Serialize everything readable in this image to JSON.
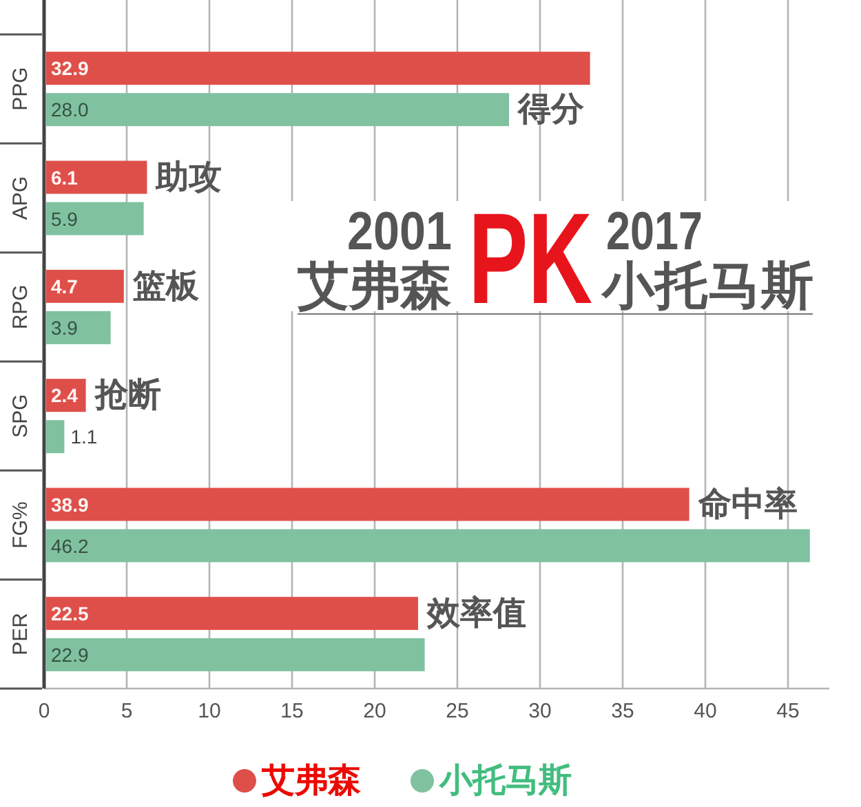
{
  "chart_data": {
    "type": "bar",
    "orientation": "horizontal",
    "title": "2001艾弗森PK2017小托马斯",
    "categories": [
      "PPG",
      "APG",
      "RPG",
      "SPG",
      "FG%",
      "PER"
    ],
    "series": [
      {
        "name": "艾弗森",
        "color": "#df4f4a",
        "values": [
          32.9,
          6.1,
          4.7,
          2.4,
          38.9,
          22.5
        ],
        "value_labels": [
          "32.9",
          "6.1",
          "4.7",
          "2.4",
          "38.9",
          "22.5"
        ]
      },
      {
        "name": "小托马斯",
        "color": "#80c1a0",
        "values": [
          28.0,
          5.9,
          3.9,
          1.1,
          46.2,
          22.9
        ],
        "value_labels": [
          "28.0",
          "5.9",
          "3.9",
          "1.1",
          "46.2",
          "22.9"
        ]
      }
    ],
    "xlim": [
      0,
      47.5
    ],
    "xticks": [
      0,
      5,
      10,
      15,
      20,
      25,
      30,
      35,
      40,
      45
    ],
    "grid": "x",
    "legend": "bottom",
    "annotations": [
      {
        "text": "得分",
        "x": 28.0,
        "y": "PPG"
      },
      {
        "text": "助攻",
        "x": 6.1,
        "y": "APG"
      },
      {
        "text": "篮板",
        "x": 4.7,
        "y": "RPG"
      },
      {
        "text": "抢断",
        "x": 2.4,
        "y": "SPG"
      },
      {
        "text": "命中率",
        "x": 38.9,
        "y": "FG%"
      },
      {
        "text": "效率值",
        "x": 22.5,
        "y": "PER"
      }
    ]
  }
}
